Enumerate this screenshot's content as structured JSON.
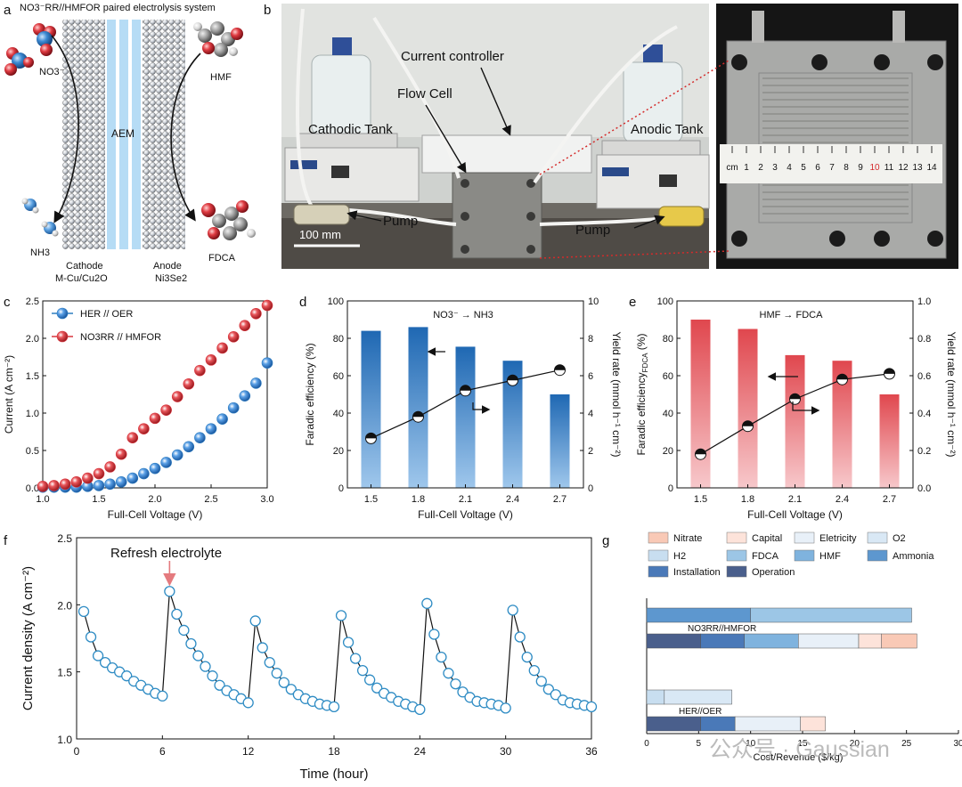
{
  "panel_a": {
    "letter": "a",
    "title": "NO3⁻RR//HMFOR paired electrolysis system",
    "labels": {
      "no3": "NO3⁻",
      "hmf": "HMF",
      "nh3": "NH3",
      "fdca": "FDCA",
      "aem": "AEM"
    },
    "cathode_title": "Cathode",
    "cathode_material": "M-Cu/Cu2O",
    "anode_title": "Anode",
    "anode_material": "Ni3Se2"
  },
  "panel_b": {
    "letter": "b",
    "labels": {
      "current_controller": "Current controller",
      "flow_cell": "Flow Cell",
      "cathodic_tank": "Cathodic Tank",
      "anodic_tank": "Anodic Tank",
      "pump_left": "Pump",
      "pump_right": "Pump",
      "scale": "100 mm"
    },
    "ruler_ticks": [
      "cm",
      "1",
      "2",
      "3",
      "4",
      "5",
      "6",
      "7",
      "8",
      "9",
      "10",
      "11",
      "12",
      "13",
      "14"
    ]
  },
  "panel_c": {
    "letter": "c"
  },
  "panel_d": {
    "letter": "d"
  },
  "panel_e": {
    "letter": "e"
  },
  "panel_f": {
    "letter": "f",
    "annotation": "Refresh electrolyte"
  },
  "panel_g": {
    "letter": "g"
  },
  "watermark": "公众号 · Gaussian",
  "colors": {
    "red": "#d9363e",
    "blue": "#2f7ec1",
    "bar_blue": "#2a77c0",
    "bar_red": "#e05a60",
    "cycle": "#2f8cc4"
  },
  "chart_data": [
    {
      "id": "c",
      "type": "scatter",
      "xlabel": "Full-Cell Voltage (V)",
      "ylabel": "Current (A cm⁻²)",
      "xlim": [
        1.0,
        3.0
      ],
      "ylim": [
        0.0,
        2.5
      ],
      "xticks": [
        "1.0",
        "1.5",
        "2.0",
        "2.5",
        "3.0"
      ],
      "yticks": [
        "0.0",
        "0.5",
        "1.0",
        "1.5",
        "2.0",
        "2.5"
      ],
      "legend_position": "top-left",
      "series": [
        {
          "name": "HER // OER",
          "color": "#2f7ec1",
          "x": [
            1.0,
            1.1,
            1.2,
            1.3,
            1.4,
            1.5,
            1.6,
            1.7,
            1.8,
            1.9,
            2.0,
            2.1,
            2.2,
            2.3,
            2.4,
            2.5,
            2.6,
            2.7,
            2.8,
            2.9,
            3.0
          ],
          "y": [
            0.01,
            0.01,
            0.01,
            0.01,
            0.02,
            0.03,
            0.05,
            0.08,
            0.13,
            0.19,
            0.26,
            0.34,
            0.44,
            0.55,
            0.67,
            0.79,
            0.92,
            1.07,
            1.23,
            1.4,
            1.67
          ]
        },
        {
          "name": "NO3RR // HMFOR",
          "color": "#d9363e",
          "x": [
            1.0,
            1.1,
            1.2,
            1.3,
            1.4,
            1.5,
            1.6,
            1.7,
            1.8,
            1.9,
            2.0,
            2.1,
            2.2,
            2.3,
            2.4,
            2.5,
            2.6,
            2.7,
            2.8,
            2.9,
            3.0
          ],
          "y": [
            0.02,
            0.03,
            0.05,
            0.08,
            0.13,
            0.19,
            0.28,
            0.45,
            0.67,
            0.79,
            0.93,
            1.04,
            1.22,
            1.39,
            1.57,
            1.71,
            1.87,
            2.02,
            2.17,
            2.33,
            2.44
          ]
        }
      ]
    },
    {
      "id": "d",
      "type": "bar",
      "title": "NO3⁻ → NH3",
      "xlabel": "Full-Cell Voltage (V)",
      "ylabel": "Faradic efficiency (%)",
      "ylabel_right": "Yield rate (mmol h⁻¹ cm⁻²)",
      "categories": [
        "1.5",
        "1.8",
        "2.1",
        "2.4",
        "2.7"
      ],
      "yticks": [
        "0",
        "20",
        "40",
        "60",
        "80",
        "100"
      ],
      "yticks_right": [
        "0",
        "2",
        "4",
        "6",
        "8",
        "10"
      ],
      "ylim": [
        0,
        100
      ],
      "ylim_right": [
        0,
        10
      ],
      "series": [
        {
          "name": "Faradic efficiency",
          "kind": "bar",
          "color": "#2a77c0",
          "values": [
            84,
            86,
            75.5,
            68,
            50
          ]
        },
        {
          "name": "Yield rate",
          "kind": "line",
          "axis": "right",
          "values": [
            2.65,
            3.8,
            5.2,
            5.75,
            6.3
          ]
        }
      ]
    },
    {
      "id": "e",
      "type": "bar",
      "title": "HMF → FDCA",
      "xlabel": "Full-Cell Voltage (V)",
      "ylabel": "Faradic efficiency",
      "ylabel_sub": "FDCA",
      "ylabel_tail": " (%)",
      "ylabel_right": "Yield rate (mmol h⁻¹ cm⁻²)",
      "categories": [
        "1.5",
        "1.8",
        "2.1",
        "2.4",
        "2.7"
      ],
      "yticks": [
        "0",
        "20",
        "40",
        "60",
        "80",
        "100"
      ],
      "yticks_right": [
        "0.0",
        "0.2",
        "0.4",
        "0.6",
        "0.8",
        "1.0"
      ],
      "ylim": [
        0,
        100
      ],
      "ylim_right": [
        0,
        1.0
      ],
      "series": [
        {
          "name": "Faradic efficiency FDCA",
          "kind": "bar",
          "color": "#e05a60",
          "values": [
            90,
            85,
            71,
            68,
            50
          ]
        },
        {
          "name": "Yield rate",
          "kind": "line",
          "axis": "right",
          "values": [
            0.18,
            0.33,
            0.475,
            0.58,
            0.61
          ]
        }
      ]
    },
    {
      "id": "f",
      "type": "scatter",
      "xlabel": "Time (hour)",
      "ylabel": "Current density (A cm⁻²)",
      "xlim": [
        0,
        36
      ],
      "ylim": [
        1.0,
        2.5
      ],
      "xticks": [
        "0",
        "6",
        "12",
        "18",
        "24",
        "30",
        "36"
      ],
      "yticks": [
        "1.0",
        "1.5",
        "2.0",
        "2.5"
      ],
      "cycles": [
        {
          "x": [
            0.5,
            1.0,
            1.5,
            2.0,
            2.5,
            3.0,
            3.5,
            4.0,
            4.5,
            5.0,
            5.5,
            6.0
          ],
          "y": [
            1.95,
            1.76,
            1.62,
            1.57,
            1.53,
            1.5,
            1.47,
            1.43,
            1.4,
            1.37,
            1.34,
            1.32
          ]
        },
        {
          "x": [
            6.5,
            7.0,
            7.5,
            8.0,
            8.5,
            9.0,
            9.5,
            10.0,
            10.5,
            11.0,
            11.5,
            12.0
          ],
          "y": [
            2.1,
            1.93,
            1.81,
            1.71,
            1.62,
            1.54,
            1.47,
            1.4,
            1.36,
            1.33,
            1.3,
            1.27
          ]
        },
        {
          "x": [
            12.5,
            13.0,
            13.5,
            14.0,
            14.5,
            15.0,
            15.5,
            16.0,
            16.5,
            17.0,
            17.5,
            18.0
          ],
          "y": [
            1.88,
            1.68,
            1.57,
            1.49,
            1.42,
            1.37,
            1.33,
            1.3,
            1.28,
            1.26,
            1.25,
            1.24
          ]
        },
        {
          "x": [
            18.5,
            19.0,
            19.5,
            20.0,
            20.5,
            21.0,
            21.5,
            22.0,
            22.5,
            23.0,
            23.5,
            24.0
          ],
          "y": [
            1.92,
            1.72,
            1.6,
            1.51,
            1.44,
            1.38,
            1.34,
            1.31,
            1.28,
            1.26,
            1.24,
            1.22
          ]
        },
        {
          "x": [
            24.5,
            25.0,
            25.5,
            26.0,
            26.5,
            27.0,
            27.5,
            28.0,
            28.5,
            29.0,
            29.5,
            30.0
          ],
          "y": [
            2.01,
            1.78,
            1.61,
            1.49,
            1.41,
            1.35,
            1.31,
            1.28,
            1.27,
            1.26,
            1.25,
            1.23
          ]
        },
        {
          "x": [
            30.5,
            31.0,
            31.5,
            32.0,
            32.5,
            33.0,
            33.5,
            34.0,
            34.5,
            35.0,
            35.5,
            36.0
          ],
          "y": [
            1.96,
            1.76,
            1.61,
            1.51,
            1.43,
            1.37,
            1.33,
            1.29,
            1.27,
            1.26,
            1.25,
            1.24
          ]
        }
      ]
    },
    {
      "id": "g",
      "type": "bar",
      "orientation": "horizontal-stacked",
      "xlabel": "Cost/Revenue ($/kg)",
      "xlim": [
        0,
        30
      ],
      "xticks": [
        "0",
        "5",
        "10",
        "15",
        "20",
        "25",
        "30"
      ],
      "legend": [
        {
          "name": "Nitrate",
          "color": "#f9c9b6"
        },
        {
          "name": "Capital",
          "color": "#fde3da"
        },
        {
          "name": "Eletricity",
          "color": "#e8f0f8"
        },
        {
          "name": "O2",
          "color": "#d9e8f5"
        },
        {
          "name": "H2",
          "color": "#c8def0"
        },
        {
          "name": "FDCA",
          "color": "#9cc6e6"
        },
        {
          "name": "HMF",
          "color": "#7fb3de"
        },
        {
          "name": "Ammonia",
          "color": "#5d97cf"
        },
        {
          "name": "Installation",
          "color": "#4a79b8"
        },
        {
          "name": "Operation",
          "color": "#4a5f8c"
        }
      ],
      "groups": [
        {
          "name": "NO3RR//HMFOR",
          "revenue": [
            {
              "name": "Ammonia",
              "value": 10.0
            },
            {
              "name": "FDCA",
              "value": 15.5
            }
          ],
          "cost": [
            {
              "name": "Operation",
              "value": 5.2
            },
            {
              "name": "Installation",
              "value": 4.2
            },
            {
              "name": "HMF",
              "value": 5.2
            },
            {
              "name": "Eletricity",
              "value": 5.8
            },
            {
              "name": "Capital",
              "value": 2.2
            },
            {
              "name": "Nitrate",
              "value": 3.4
            }
          ]
        },
        {
          "name": "HER//OER",
          "revenue": [
            {
              "name": "H2",
              "value": 1.7
            },
            {
              "name": "O2",
              "value": 6.5
            }
          ],
          "cost": [
            {
              "name": "Operation",
              "value": 5.2
            },
            {
              "name": "Installation",
              "value": 3.3
            },
            {
              "name": "Eletricity",
              "value": 6.3
            },
            {
              "name": "Capital",
              "value": 2.4
            }
          ]
        }
      ]
    }
  ]
}
